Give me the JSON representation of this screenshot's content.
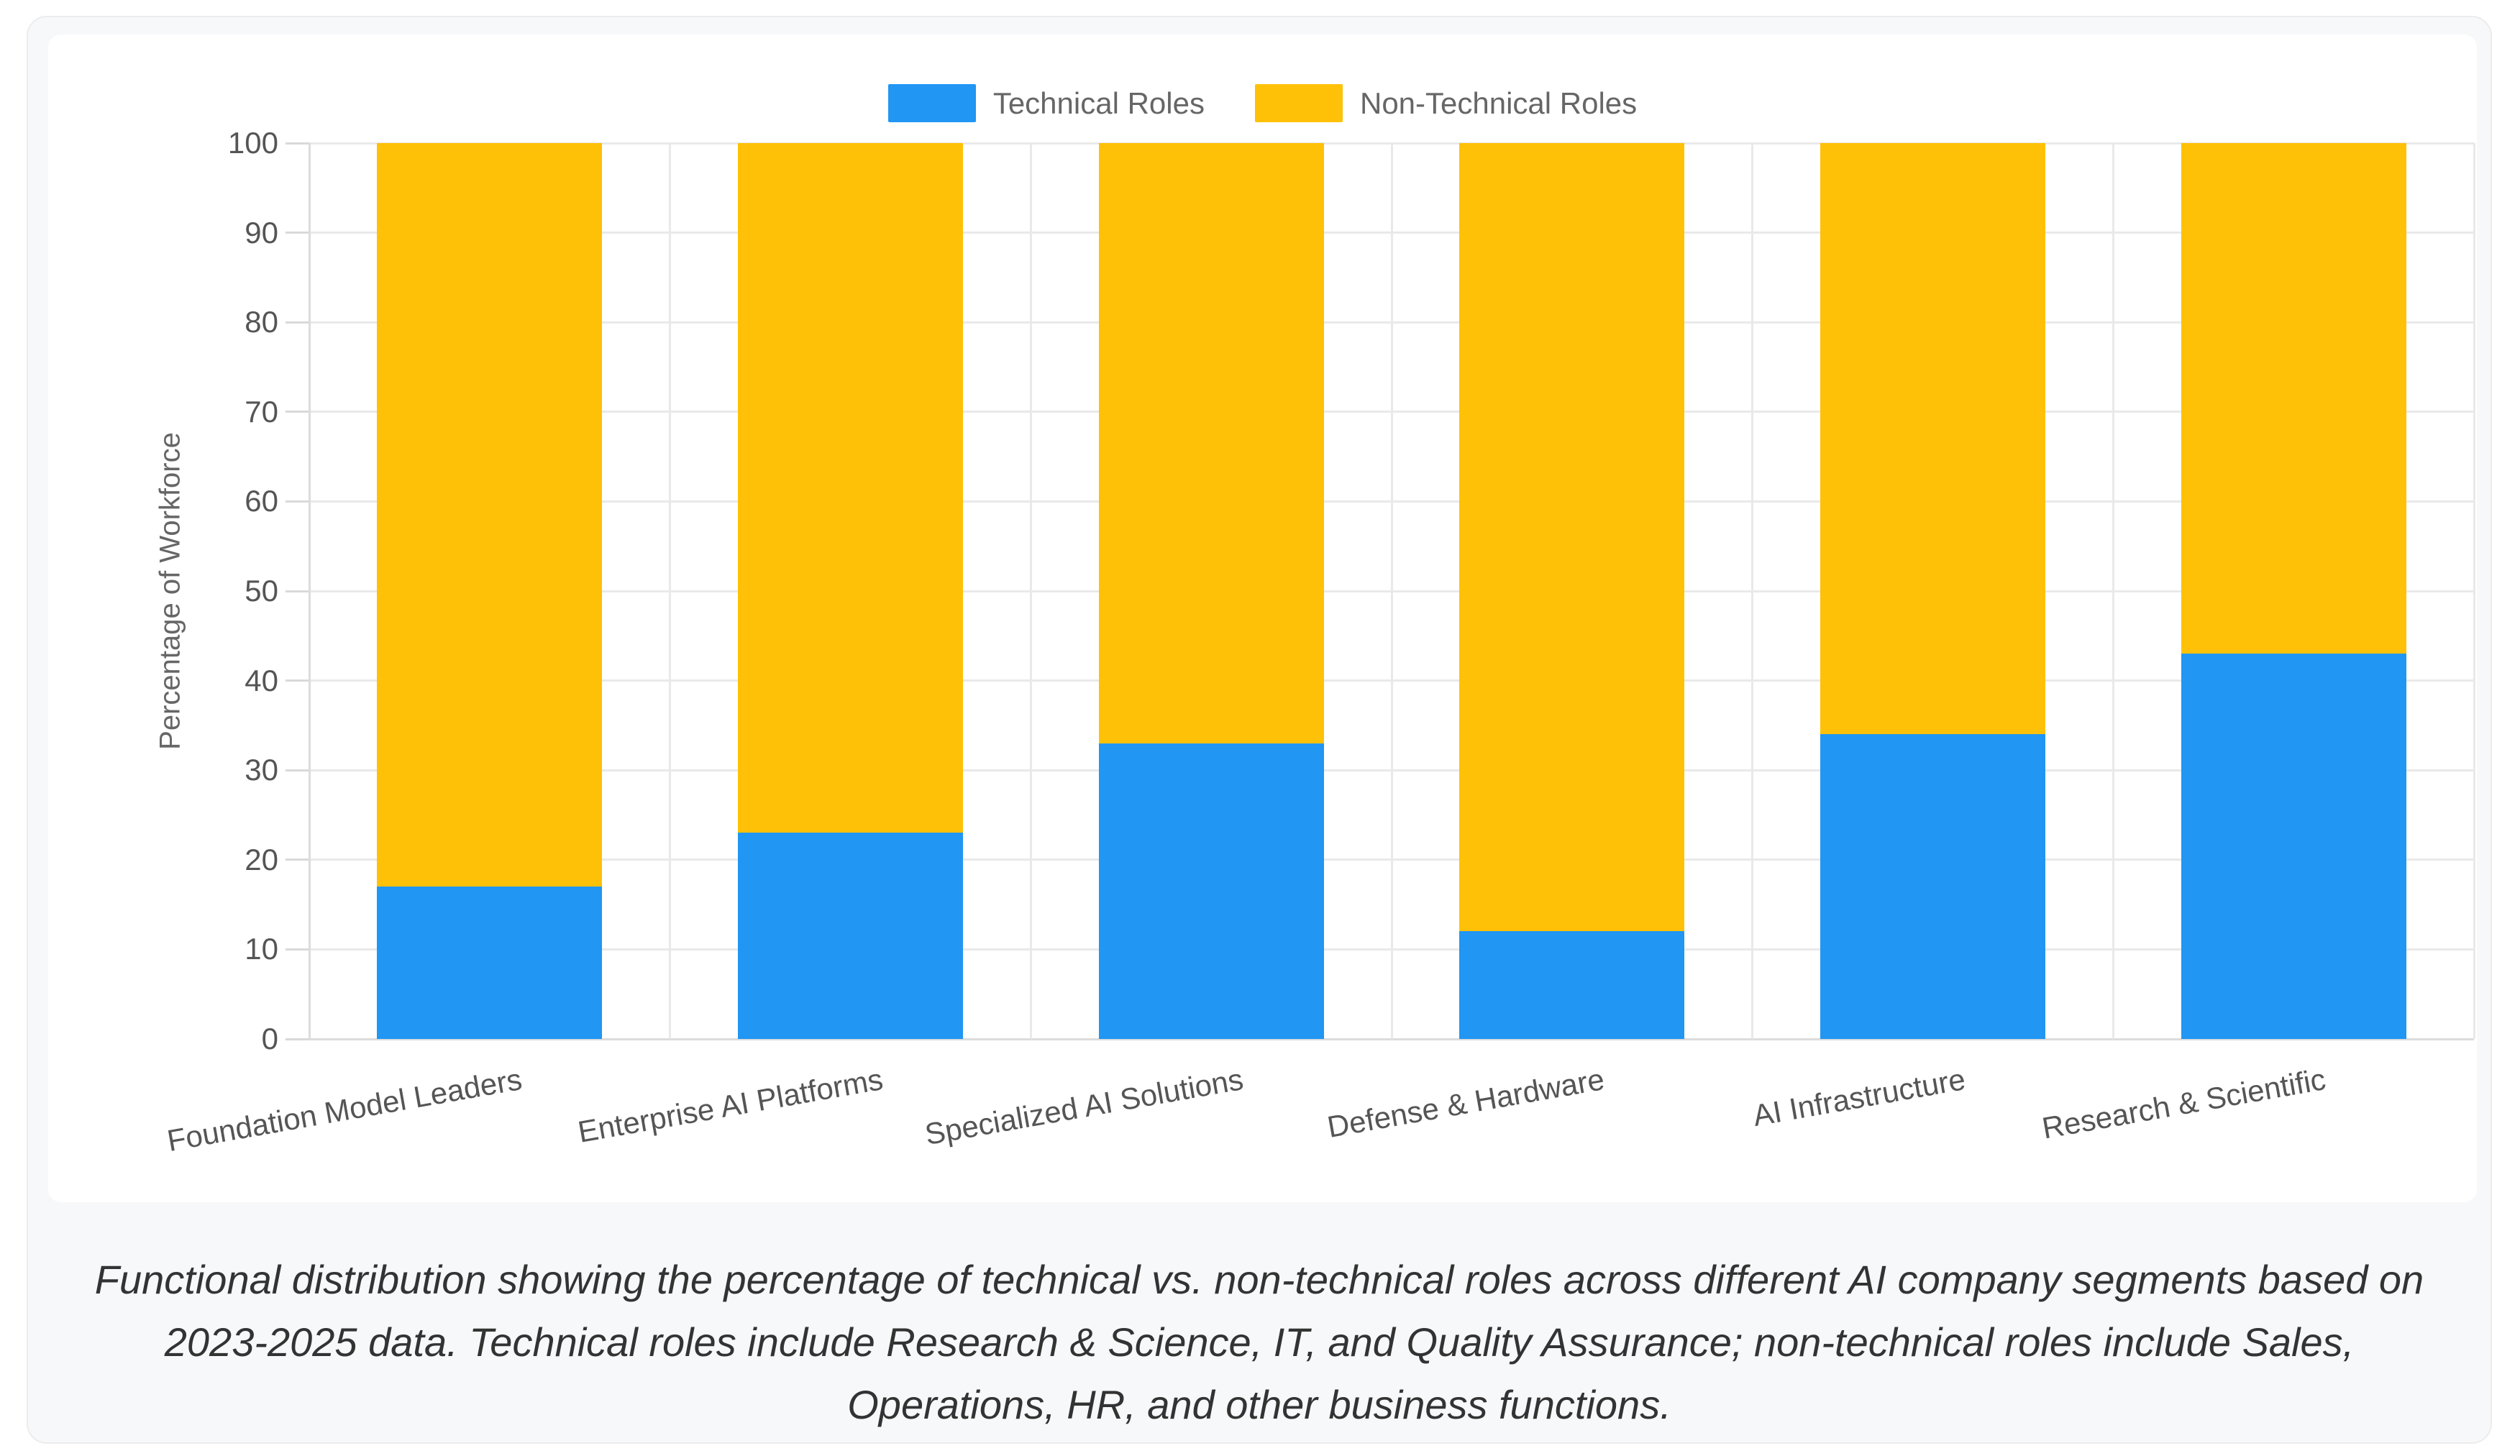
{
  "figure": {
    "caption": "Functional distribution showing the percentage of technical vs. non-technical roles across different AI company segments based on 2023-2025 data. Technical roles include Research & Science, IT, and Quality Assurance; non-technical roles include Sales, Operations, HR, and other business functions."
  },
  "chart_data": {
    "type": "bar",
    "stacked": true,
    "categories": [
      "Foundation Model Leaders",
      "Enterprise AI Platforms",
      "Specialized AI Solutions",
      "Defense & Hardware",
      "AI Infrastructure",
      "Research & Scientific"
    ],
    "series": [
      {
        "name": "Technical Roles",
        "color": "#2196f3",
        "values": [
          17,
          23,
          33,
          12,
          34,
          43
        ]
      },
      {
        "name": "Non-Technical Roles",
        "color": "#ffc107",
        "values": [
          83,
          77,
          67,
          88,
          66,
          57
        ]
      }
    ],
    "title": "",
    "xlabel": "",
    "ylabel": "Percentage of Workforce",
    "ylim": [
      0,
      100
    ],
    "ytick_step": 10,
    "grid": true,
    "legend_position": "top",
    "colors": {
      "technical": "#2196f3",
      "non_technical": "#ffc107"
    }
  }
}
